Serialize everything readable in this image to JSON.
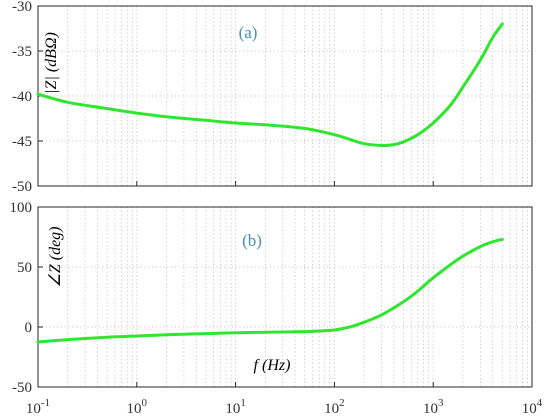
{
  "colors": {
    "curve": "#2ee62e",
    "panel_tag": "#4a8cc0",
    "grid": "#b4b4b4",
    "axes": "#262626"
  },
  "chart_data": [
    {
      "type": "line",
      "panel_tag": "(a)",
      "xlabel": "",
      "ylabel": "|Z| (dBΩ)",
      "xscale": "log",
      "xlim": [
        0.1,
        10000
      ],
      "ylim": [
        -50,
        -30
      ],
      "grid": true,
      "x_ticks": [
        0.1,
        1,
        10,
        100,
        1000,
        10000
      ],
      "y_ticks": [
        -50,
        -45,
        -40,
        -35,
        -30
      ],
      "y_tick_labels": [
        "-50",
        "-45",
        "-40",
        "-35",
        "-30"
      ],
      "series": [
        {
          "x": [
            0.1,
            0.2,
            0.5,
            1,
            2,
            5,
            10,
            20,
            50,
            100,
            150,
            200,
            300,
            400,
            500,
            700,
            1000,
            1500,
            2000,
            3000,
            4000,
            5000
          ],
          "y": [
            -39.8,
            -40.7,
            -41.4,
            -41.9,
            -42.3,
            -42.7,
            -43.0,
            -43.2,
            -43.6,
            -44.3,
            -44.9,
            -45.3,
            -45.5,
            -45.4,
            -45.1,
            -44.3,
            -43.0,
            -41.0,
            -39.0,
            -36.0,
            -33.5,
            -32.0
          ]
        }
      ]
    },
    {
      "type": "line",
      "panel_tag": "(b)",
      "xlabel": "f (Hz)",
      "ylabel": "∠Z (deg)",
      "xscale": "log",
      "xlim": [
        0.1,
        10000
      ],
      "ylim": [
        -50,
        100
      ],
      "grid": true,
      "x_ticks": [
        0.1,
        1,
        10,
        100,
        1000,
        10000
      ],
      "x_tick_mantissa": "10",
      "x_tick_exponents": [
        "-1",
        "0",
        "1",
        "2",
        "3",
        "4"
      ],
      "y_ticks": [
        -50,
        0,
        50,
        100
      ],
      "y_tick_labels": [
        "-50",
        "0",
        "50",
        "100"
      ],
      "series": [
        {
          "x": [
            0.1,
            0.2,
            0.5,
            1,
            2,
            5,
            10,
            20,
            50,
            100,
            150,
            200,
            300,
            500,
            700,
            1000,
            1500,
            2000,
            3000,
            4000,
            5000
          ],
          "y": [
            -12.5,
            -10.5,
            -8.5,
            -7.5,
            -6.5,
            -5.5,
            -4.8,
            -4.3,
            -3.8,
            -2.5,
            0.5,
            4,
            10,
            21,
            30,
            41,
            52,
            59,
            67,
            71,
            73
          ]
        }
      ]
    }
  ]
}
